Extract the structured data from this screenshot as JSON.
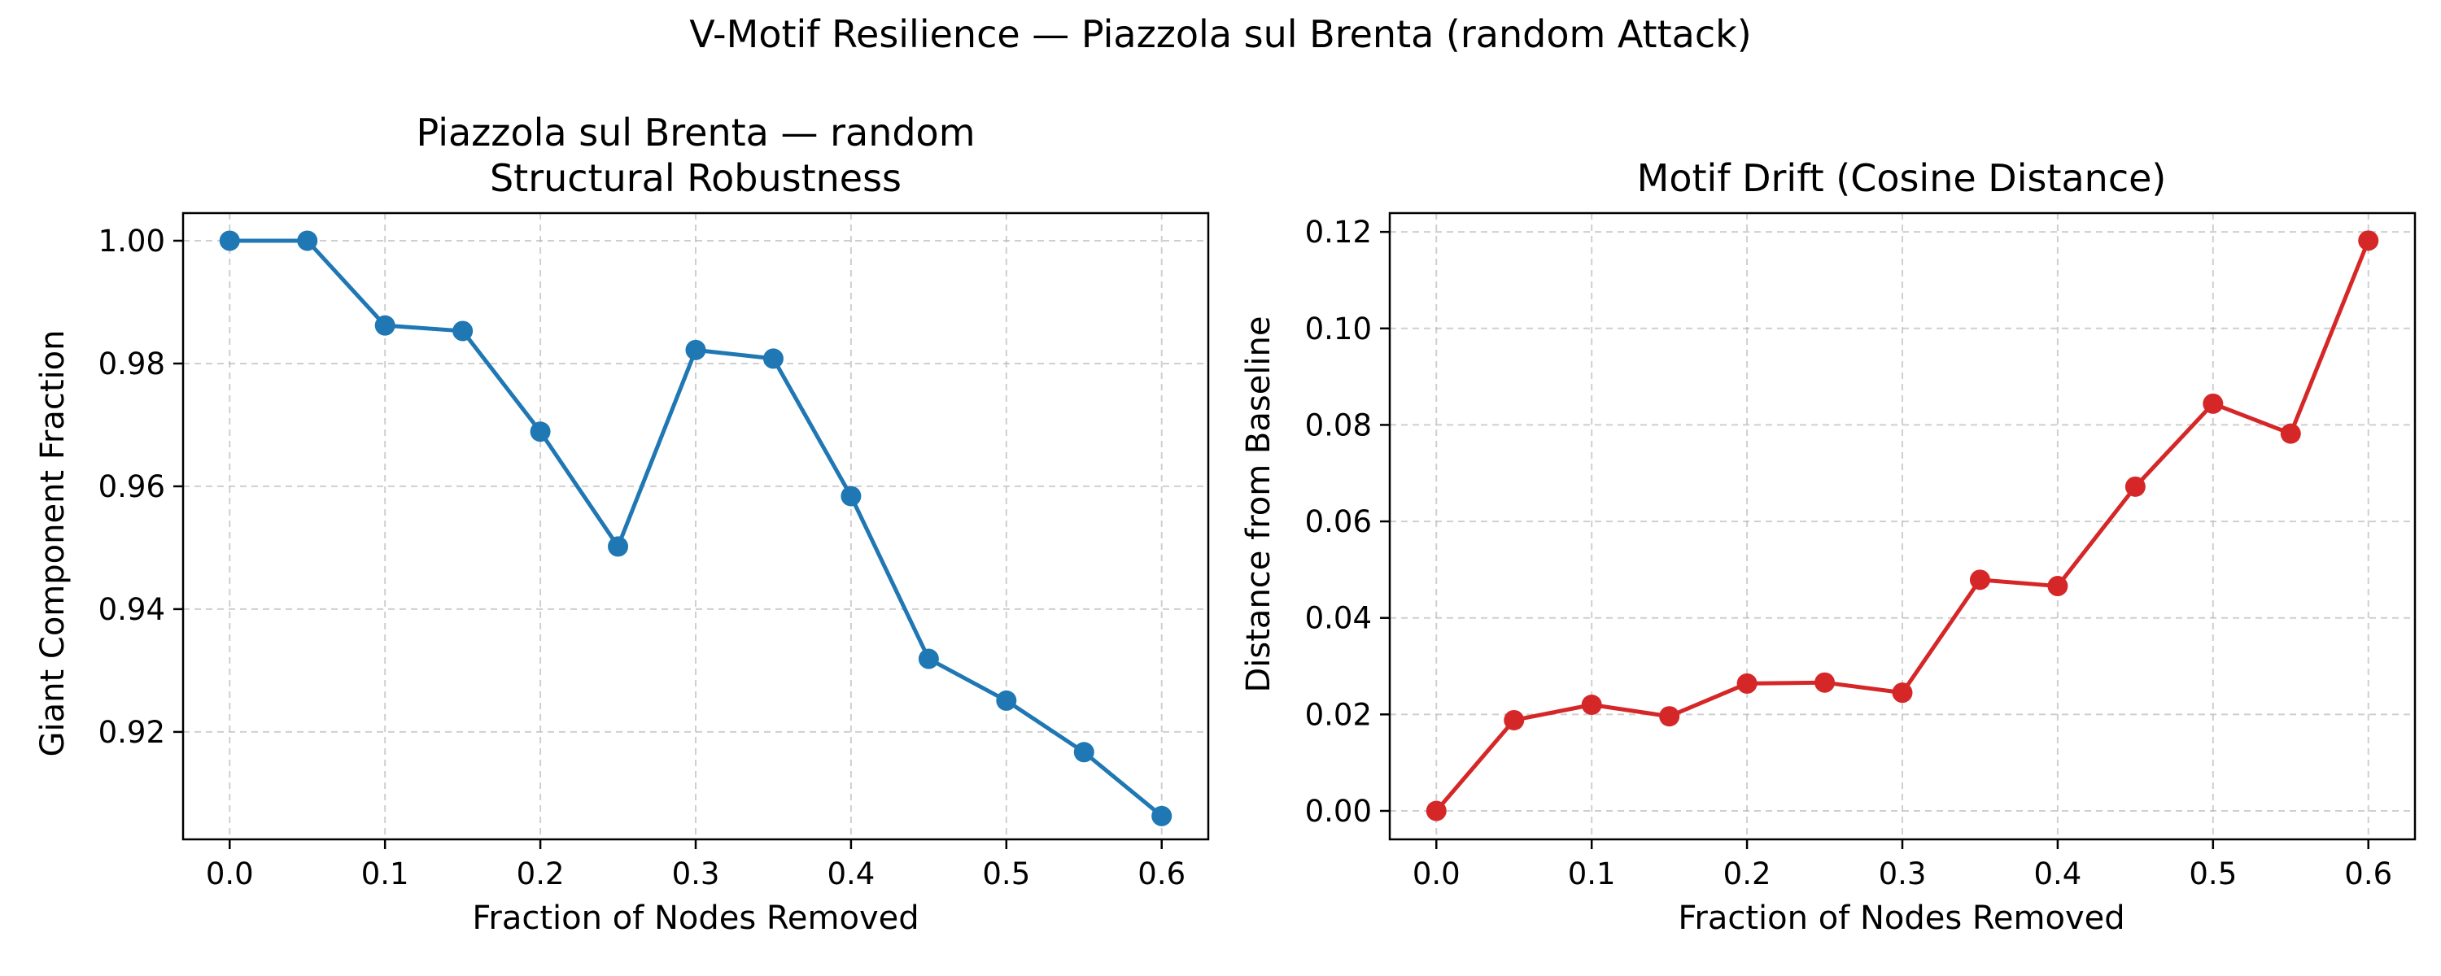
{
  "figure": {
    "suptitle": "V-Motif Resilience — Piazzola sul Brenta (random Attack)"
  },
  "chart_data": [
    {
      "type": "line",
      "title_line1": "Piazzola sul Brenta — random",
      "title_line2": "Structural Robustness",
      "xlabel": "Fraction of Nodes Removed",
      "ylabel": "Giant Component Fraction",
      "xlim": [
        -0.03,
        0.63
      ],
      "ylim": [
        0.9025,
        1.0045
      ],
      "xticks": [
        0.0,
        0.1,
        0.2,
        0.3,
        0.4,
        0.5,
        0.6
      ],
      "xtick_labels": [
        "0.0",
        "0.1",
        "0.2",
        "0.3",
        "0.4",
        "0.5",
        "0.6"
      ],
      "yticks": [
        0.92,
        0.94,
        0.96,
        0.98,
        1.0
      ],
      "ytick_labels": [
        "0.92",
        "0.94",
        "0.96",
        "0.98",
        "1.00"
      ],
      "grid": true,
      "color": "#1f77b4",
      "series": [
        {
          "x": [
            0.0,
            0.05,
            0.1,
            0.15,
            0.2,
            0.25,
            0.3,
            0.35,
            0.4,
            0.45,
            0.5,
            0.55,
            0.6
          ],
          "y": [
            1.0,
            1.0,
            0.9862,
            0.9853,
            0.9689,
            0.9502,
            0.9822,
            0.9808,
            0.9584,
            0.9319,
            0.9251,
            0.9167,
            0.9063
          ]
        }
      ]
    },
    {
      "type": "line",
      "title_line1": "Motif Drift (Cosine Distance)",
      "title_line2": "",
      "xlabel": "Fraction of Nodes Removed",
      "ylabel": "Distance from Baseline",
      "xlim": [
        -0.03,
        0.63
      ],
      "ylim": [
        -0.0059,
        0.1239
      ],
      "xticks": [
        0.0,
        0.1,
        0.2,
        0.3,
        0.4,
        0.5,
        0.6
      ],
      "xtick_labels": [
        "0.0",
        "0.1",
        "0.2",
        "0.3",
        "0.4",
        "0.5",
        "0.6"
      ],
      "yticks": [
        0.0,
        0.02,
        0.04,
        0.06,
        0.08,
        0.1,
        0.12
      ],
      "ytick_labels": [
        "0.00",
        "0.02",
        "0.04",
        "0.06",
        "0.08",
        "0.10",
        "0.12"
      ],
      "grid": true,
      "color": "#d62728",
      "series": [
        {
          "x": [
            0.0,
            0.05,
            0.1,
            0.15,
            0.2,
            0.25,
            0.3,
            0.35,
            0.4,
            0.45,
            0.5,
            0.55,
            0.6
          ],
          "y": [
            0.0,
            0.0188,
            0.022,
            0.0196,
            0.0264,
            0.0266,
            0.0245,
            0.0479,
            0.0466,
            0.0672,
            0.0844,
            0.0782,
            0.1182
          ]
        }
      ]
    }
  ]
}
